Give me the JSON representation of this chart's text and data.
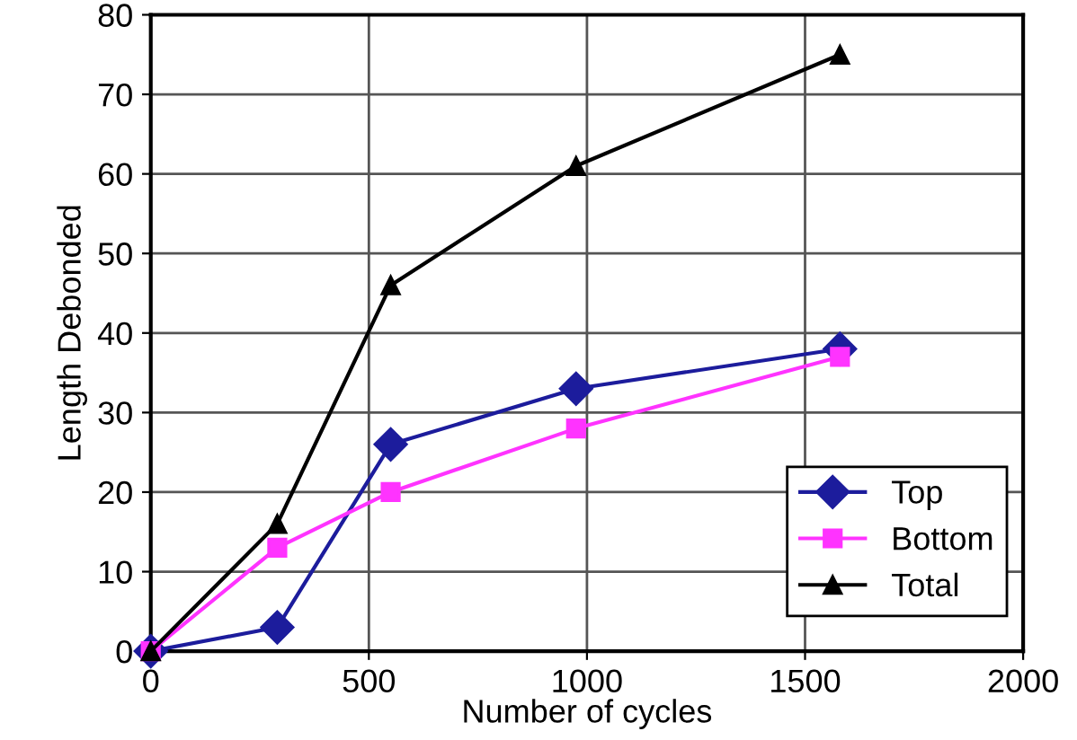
{
  "chart_data": {
    "type": "line",
    "xlabel": "Number of cycles",
    "ylabel": "Length Debonded",
    "xlim": [
      0,
      2000
    ],
    "xticks": [
      0,
      500,
      1000,
      1500,
      2000
    ],
    "ylim": [
      0,
      80
    ],
    "yticks": [
      0,
      10,
      20,
      30,
      40,
      50,
      60,
      70,
      80
    ],
    "grid": true,
    "legend": "bottom right",
    "line_style": "solid",
    "series": [
      {
        "name": "Top",
        "color": "#1c1c9c",
        "marker": "diamond",
        "x": [
          0,
          290,
          550,
          975,
          1580
        ],
        "values": [
          0,
          3,
          26,
          33,
          38
        ]
      },
      {
        "name": "Bottom",
        "color": "#ff33ff",
        "marker": "square",
        "x": [
          0,
          290,
          550,
          975,
          1580
        ],
        "values": [
          0,
          13,
          20,
          28,
          37
        ]
      },
      {
        "name": "Total",
        "color": "#000000",
        "marker": "triangle",
        "x": [
          0,
          290,
          550,
          975,
          1580
        ],
        "values": [
          0,
          16,
          46,
          61,
          75
        ]
      }
    ]
  }
}
